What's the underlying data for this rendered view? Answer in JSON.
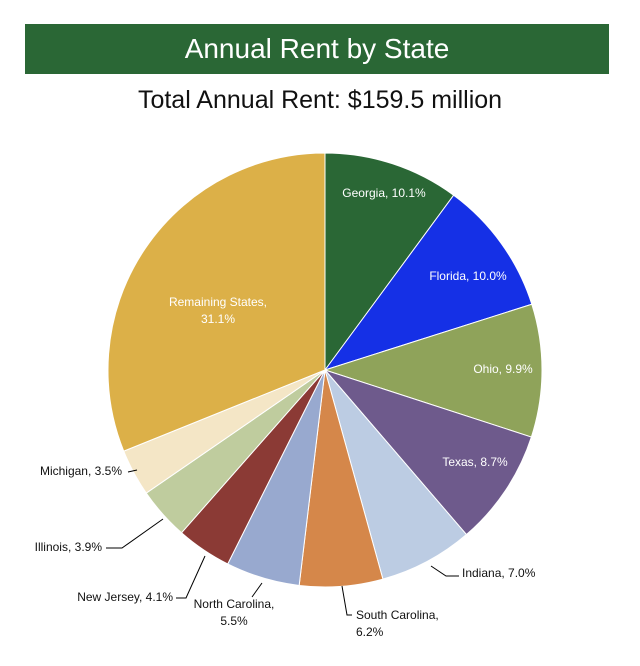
{
  "banner_title": "Annual Rent by State",
  "subtitle": "Total Annual Rent: $159.5 million",
  "chart_data": {
    "type": "pie",
    "slices": [
      {
        "label": "Georgia",
        "value": 10.1,
        "color": "#2a6735",
        "text": [
          "Georgia, 10.1%"
        ]
      },
      {
        "label": "Florida",
        "value": 10.0,
        "color": "#1530e6",
        "text": [
          "Florida, 10.0%"
        ]
      },
      {
        "label": "Ohio",
        "value": 9.9,
        "color": "#8fa35a",
        "text": [
          "Ohio, 9.9%"
        ]
      },
      {
        "label": "Texas",
        "value": 8.7,
        "color": "#6e5a8c",
        "text": [
          "Texas, 8.7%"
        ]
      },
      {
        "label": "Indiana",
        "value": 7.0,
        "color": "#bcccE3",
        "text": [
          "Indiana, 7.0%"
        ]
      },
      {
        "label": "South Carolina",
        "value": 6.2,
        "color": "#d5874a",
        "text": [
          "South Carolina,",
          "6.2%"
        ]
      },
      {
        "label": "North Carolina",
        "value": 5.5,
        "color": "#98a9cf",
        "text": [
          "North Carolina,",
          "5.5%"
        ]
      },
      {
        "label": "New Jersey",
        "value": 4.1,
        "color": "#8b3a35",
        "text": [
          "New Jersey, 4.1%"
        ]
      },
      {
        "label": "Illinois",
        "value": 3.9,
        "color": "#bfcc9e",
        "text": [
          "Illinois, 3.9%"
        ]
      },
      {
        "label": "Michigan",
        "value": 3.5,
        "color": "#f4e6c6",
        "text": [
          "Michigan, 3.5%"
        ]
      },
      {
        "label": "Remaining States",
        "value": 31.1,
        "color": "#dcb048",
        "text": [
          "Remaining States,",
          "31.1%"
        ]
      }
    ]
  }
}
